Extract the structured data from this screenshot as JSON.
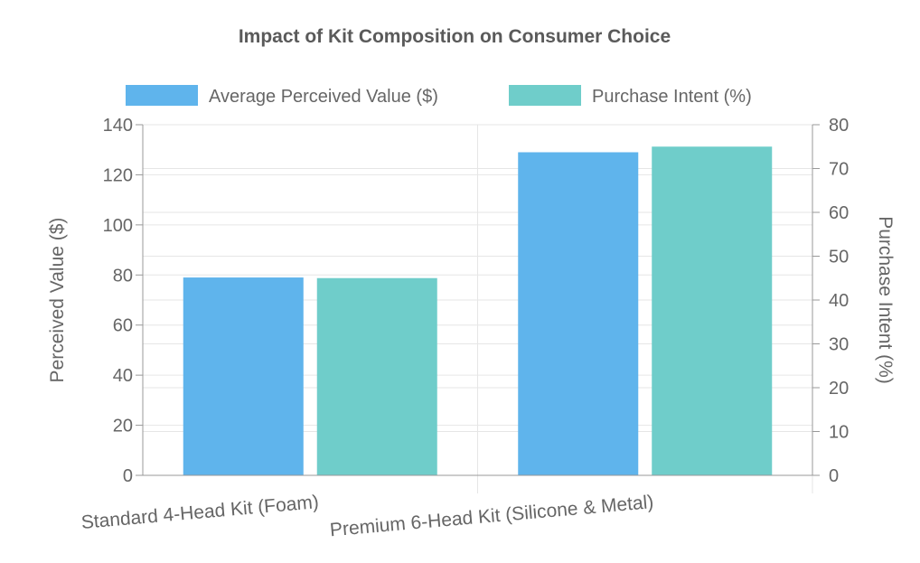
{
  "chart_data": {
    "type": "bar",
    "title": "Impact of Kit Composition on Consumer Choice",
    "categories": [
      "Standard 4-Head Kit (Foam)",
      "Premium 6-Head Kit (Silicone & Metal)"
    ],
    "series": [
      {
        "name": "Average Perceived Value ($)",
        "axis": "left",
        "color": "#5fb4ec",
        "values": [
          79,
          129
        ]
      },
      {
        "name": "Purchase Intent (%)",
        "axis": "right",
        "color": "#6fcdca",
        "values": [
          45,
          75
        ]
      }
    ],
    "ylabel": "Perceived Value ($)",
    "ylabel_right": "Purchase Intent (%)",
    "ylim": [
      0,
      140
    ],
    "ylim_right": [
      0,
      80
    ],
    "yticks": [
      "0",
      "20",
      "40",
      "60",
      "80",
      "100",
      "120",
      "140"
    ],
    "yticks_right": [
      "0",
      "10",
      "20",
      "30",
      "40",
      "50",
      "60",
      "70",
      "80"
    ],
    "grid": true,
    "legend_position": "top-center"
  }
}
